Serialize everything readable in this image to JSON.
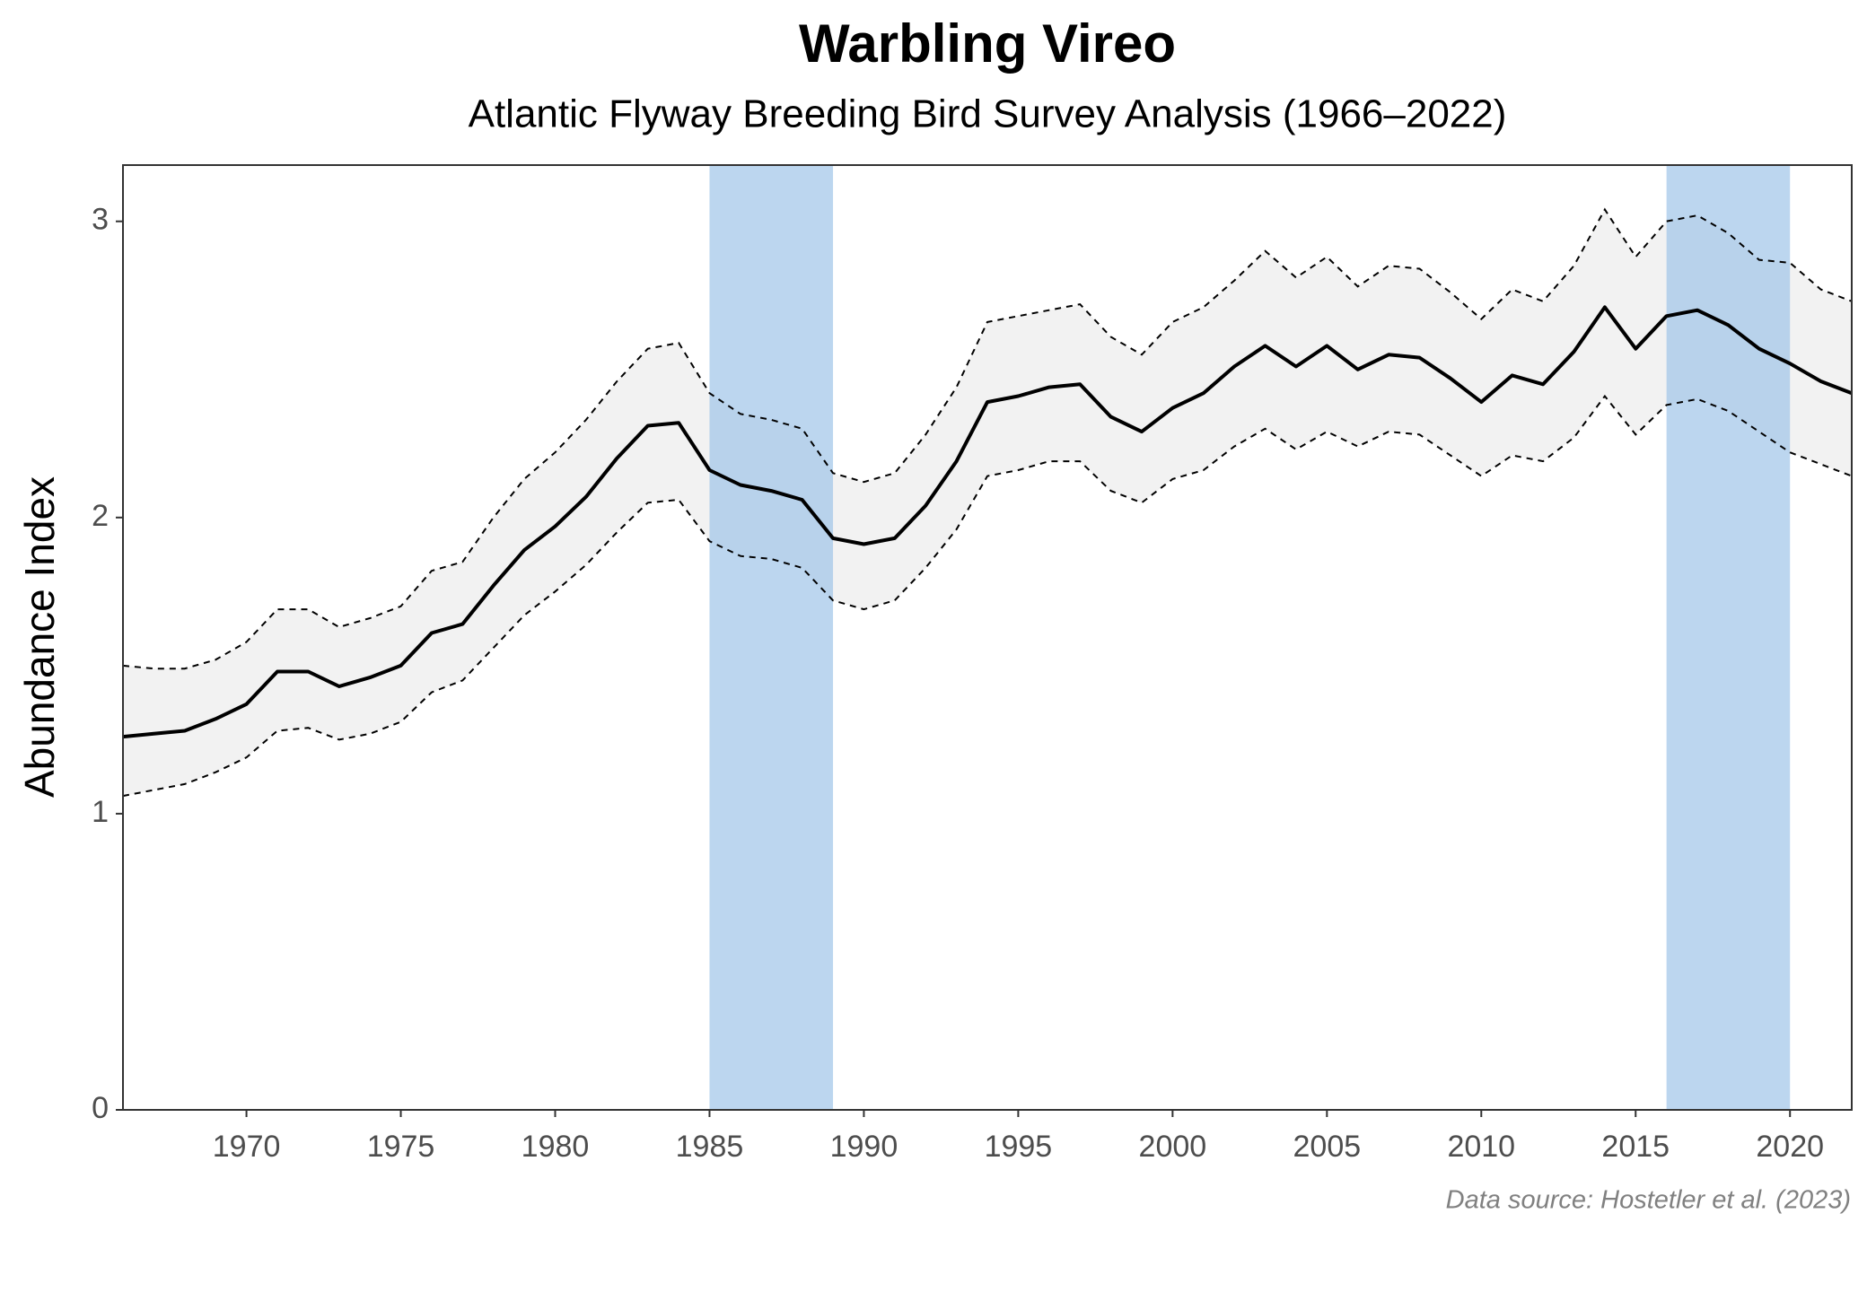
{
  "chart_data": {
    "type": "line",
    "title": "Warbling Vireo",
    "subtitle": "Atlantic Flyway Breeding Bird Survey Analysis (1966–2022)",
    "y_label": "Abundance Index",
    "caption": "Data source: Hostetler et al. (2023)",
    "x": [
      1966,
      1967,
      1968,
      1969,
      1970,
      1971,
      1972,
      1973,
      1974,
      1975,
      1976,
      1977,
      1978,
      1979,
      1980,
      1981,
      1982,
      1983,
      1984,
      1985,
      1986,
      1987,
      1988,
      1989,
      1990,
      1991,
      1992,
      1993,
      1994,
      1995,
      1996,
      1997,
      1998,
      1999,
      2000,
      2001,
      2002,
      2003,
      2004,
      2005,
      2006,
      2007,
      2008,
      2009,
      2010,
      2011,
      2012,
      2013,
      2014,
      2015,
      2016,
      2017,
      2018,
      2019,
      2020,
      2021,
      2022
    ],
    "values": [
      1.26,
      1.27,
      1.28,
      1.32,
      1.37,
      1.48,
      1.48,
      1.43,
      1.46,
      1.5,
      1.61,
      1.64,
      1.77,
      1.89,
      1.97,
      2.07,
      2.2,
      2.31,
      2.32,
      2.16,
      2.11,
      2.09,
      2.06,
      1.93,
      1.91,
      1.93,
      2.04,
      2.19,
      2.39,
      2.41,
      2.44,
      2.45,
      2.34,
      2.29,
      2.37,
      2.42,
      2.51,
      2.58,
      2.51,
      2.58,
      2.5,
      2.55,
      2.54,
      2.47,
      2.39,
      2.48,
      2.45,
      2.56,
      2.71,
      2.57,
      2.68,
      2.7,
      2.65,
      2.57,
      2.52,
      2.46,
      2.42
    ],
    "upper": [
      1.5,
      1.49,
      1.49,
      1.52,
      1.58,
      1.69,
      1.69,
      1.63,
      1.66,
      1.7,
      1.82,
      1.85,
      2.0,
      2.13,
      2.22,
      2.33,
      2.46,
      2.57,
      2.59,
      2.42,
      2.35,
      2.33,
      2.3,
      2.15,
      2.12,
      2.15,
      2.28,
      2.44,
      2.66,
      2.68,
      2.7,
      2.72,
      2.61,
      2.55,
      2.66,
      2.71,
      2.8,
      2.9,
      2.81,
      2.88,
      2.78,
      2.85,
      2.84,
      2.76,
      2.67,
      2.77,
      2.73,
      2.85,
      3.04,
      2.88,
      3.0,
      3.02,
      2.96,
      2.87,
      2.86,
      2.77,
      2.73
    ],
    "lower": [
      1.06,
      1.08,
      1.1,
      1.14,
      1.19,
      1.28,
      1.29,
      1.25,
      1.27,
      1.31,
      1.41,
      1.45,
      1.56,
      1.67,
      1.75,
      1.84,
      1.95,
      2.05,
      2.06,
      1.92,
      1.87,
      1.86,
      1.83,
      1.72,
      1.69,
      1.72,
      1.83,
      1.96,
      2.14,
      2.16,
      2.19,
      2.19,
      2.09,
      2.05,
      2.13,
      2.16,
      2.24,
      2.3,
      2.23,
      2.29,
      2.24,
      2.29,
      2.28,
      2.21,
      2.14,
      2.21,
      2.19,
      2.27,
      2.41,
      2.28,
      2.38,
      2.4,
      2.36,
      2.29,
      2.22,
      2.18,
      2.14
    ],
    "color": "#000000",
    "band_color": "#f2f2f2",
    "highlights": [
      [
        1985,
        1989
      ],
      [
        2016,
        2020
      ]
    ],
    "highlight_color": "#9fc5e8",
    "xlim": [
      1966,
      2022
    ],
    "ylim": [
      0,
      3.19
    ],
    "xticks": [
      1970,
      1975,
      1980,
      1985,
      1990,
      1995,
      2000,
      2005,
      2010,
      2015,
      2020
    ],
    "yticks": [
      0,
      1,
      2,
      3
    ]
  }
}
